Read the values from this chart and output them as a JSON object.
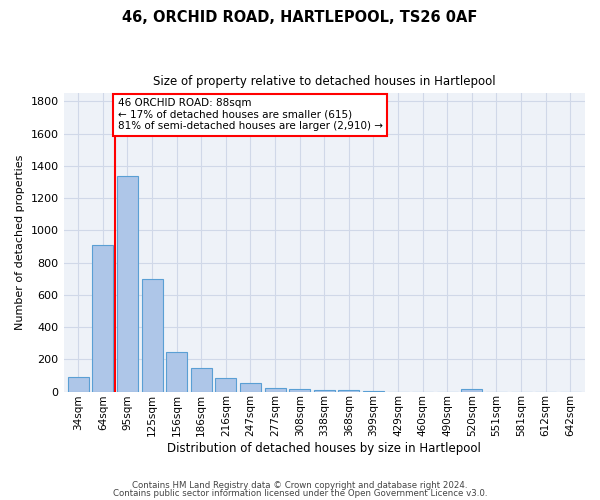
{
  "title_line1": "46, ORCHID ROAD, HARTLEPOOL, TS26 0AF",
  "title_line2": "Size of property relative to detached houses in Hartlepool",
  "xlabel": "Distribution of detached houses by size in Hartlepool",
  "ylabel": "Number of detached properties",
  "categories": [
    "34sqm",
    "64sqm",
    "95sqm",
    "125sqm",
    "156sqm",
    "186sqm",
    "216sqm",
    "247sqm",
    "277sqm",
    "308sqm",
    "338sqm",
    "368sqm",
    "399sqm",
    "429sqm",
    "460sqm",
    "490sqm",
    "520sqm",
    "551sqm",
    "581sqm",
    "612sqm",
    "642sqm"
  ],
  "values": [
    90,
    910,
    1340,
    700,
    245,
    145,
    85,
    55,
    25,
    18,
    12,
    10,
    5,
    0,
    0,
    0,
    18,
    0,
    0,
    0,
    0
  ],
  "bar_color": "#aec6e8",
  "bar_edge_color": "#5a9fd4",
  "property_line_x": 1.5,
  "annotation_text": "46 ORCHID ROAD: 88sqm\n← 17% of detached houses are smaller (615)\n81% of semi-detached houses are larger (2,910) →",
  "annotation_box_color": "white",
  "annotation_box_edge_color": "red",
  "vline_color": "red",
  "ylim": [
    0,
    1850
  ],
  "yticks": [
    0,
    200,
    400,
    600,
    800,
    1000,
    1200,
    1400,
    1600,
    1800
  ],
  "grid_color": "#d0d8e8",
  "background_color": "#eef2f8",
  "footer_line1": "Contains HM Land Registry data © Crown copyright and database right 2024.",
  "footer_line2": "Contains public sector information licensed under the Open Government Licence v3.0."
}
